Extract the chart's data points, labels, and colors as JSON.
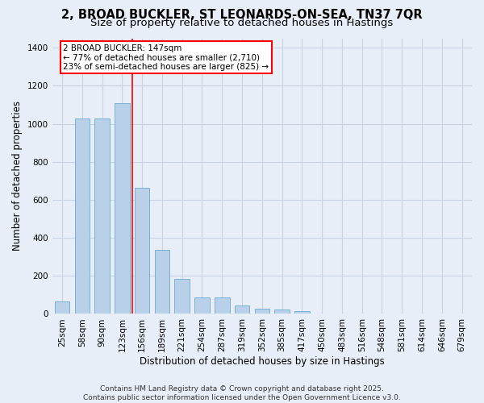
{
  "title_line1": "2, BROAD BUCKLER, ST LEONARDS-ON-SEA, TN37 7QR",
  "title_line2": "Size of property relative to detached houses in Hastings",
  "xlabel": "Distribution of detached houses by size in Hastings",
  "ylabel": "Number of detached properties",
  "categories": [
    "25sqm",
    "58sqm",
    "90sqm",
    "123sqm",
    "156sqm",
    "189sqm",
    "221sqm",
    "254sqm",
    "287sqm",
    "319sqm",
    "352sqm",
    "385sqm",
    "417sqm",
    "450sqm",
    "483sqm",
    "516sqm",
    "548sqm",
    "581sqm",
    "614sqm",
    "646sqm",
    "679sqm"
  ],
  "values": [
    65,
    1030,
    1030,
    1110,
    665,
    335,
    185,
    85,
    85,
    45,
    28,
    25,
    15,
    0,
    0,
    0,
    0,
    0,
    0,
    0,
    0
  ],
  "bar_color": "#b8d0e8",
  "bar_edge_color": "#6aaad4",
  "grid_color": "#c8d4e4",
  "background_color": "#e8eef8",
  "vline_color": "red",
  "annotation_text": "2 BROAD BUCKLER: 147sqm\n← 77% of detached houses are smaller (2,710)\n23% of semi-detached houses are larger (825) →",
  "annotation_box_color": "white",
  "annotation_box_edge": "red",
  "footer_text": "Contains HM Land Registry data © Crown copyright and database right 2025.\nContains public sector information licensed under the Open Government Licence v3.0.",
  "ylim": [
    0,
    1450
  ],
  "yticks": [
    0,
    200,
    400,
    600,
    800,
    1000,
    1200,
    1400
  ],
  "title_fontsize": 10.5,
  "subtitle_fontsize": 9.5,
  "axis_label_fontsize": 8.5,
  "tick_fontsize": 7.5,
  "annotation_fontsize": 7.5,
  "footer_fontsize": 6.5
}
